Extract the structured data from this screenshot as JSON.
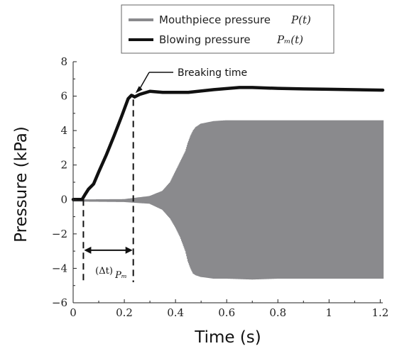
{
  "chart_data": {
    "type": "line",
    "xlabel": "Time (s)",
    "ylabel": "Pressure (kPa)",
    "xlim": [
      0,
      1.21
    ],
    "ylim": [
      -6,
      8
    ],
    "x_ticks": [
      0,
      0.2,
      0.4,
      0.6,
      0.8,
      1,
      1.2
    ],
    "x_tick_labels": [
      "0",
      "0.2",
      "0.4",
      "0.6",
      "0.8",
      "1",
      "1.2"
    ],
    "y_ticks": [
      -6,
      -4,
      -2,
      0,
      2,
      4,
      6,
      8
    ],
    "y_tick_labels": [
      "−6",
      "−4",
      "−2",
      "0",
      "2",
      "4",
      "6",
      "8"
    ],
    "legend_position": "top",
    "series": [
      {
        "name": "Mouthpiece pressure",
        "name_math": "P(t)",
        "color": "#8a8a8d",
        "style": "oscillation-envelope",
        "x": [
          0,
          0.2,
          0.3,
          0.35,
          0.38,
          0.4,
          0.42,
          0.44,
          0.45,
          0.46,
          0.47,
          0.48,
          0.5,
          0.55,
          0.6,
          0.7,
          0.8,
          1.0,
          1.21
        ],
        "upper": [
          0,
          0.02,
          0.2,
          0.5,
          1.0,
          1.6,
          2.2,
          2.8,
          3.3,
          3.7,
          4.0,
          4.2,
          4.4,
          4.55,
          4.6,
          4.6,
          4.6,
          4.6,
          4.6
        ],
        "lower": [
          -0.12,
          -0.15,
          -0.25,
          -0.6,
          -1.1,
          -1.6,
          -2.2,
          -3.0,
          -3.6,
          -4.0,
          -4.3,
          -4.4,
          -4.5,
          -4.6,
          -4.6,
          -4.65,
          -4.6,
          -4.6,
          -4.6
        ]
      },
      {
        "name": "Blowing pressure",
        "name_math": "Pₘ(t)",
        "color": "#111111",
        "style": "thick-line",
        "x": [
          0,
          0.035,
          0.045,
          0.06,
          0.08,
          0.1,
          0.13,
          0.16,
          0.19,
          0.215,
          0.228,
          0.235,
          0.24,
          0.26,
          0.3,
          0.35,
          0.45,
          0.55,
          0.65,
          0.7,
          0.8,
          0.9,
          1.0,
          1.21
        ],
        "values": [
          0,
          0,
          0.25,
          0.6,
          0.9,
          1.6,
          2.6,
          3.7,
          4.85,
          5.85,
          6.05,
          6.0,
          5.95,
          6.1,
          6.28,
          6.22,
          6.22,
          6.38,
          6.5,
          6.5,
          6.45,
          6.42,
          6.4,
          6.35
        ]
      }
    ],
    "annotations": {
      "breaking_time": {
        "label": "Breaking time",
        "x": 0.235,
        "y": 6.05
      },
      "delta_t": {
        "label": "(Δt)",
        "subscript": "Pₘ",
        "x_start": 0.04,
        "x_end": 0.235,
        "y": -2.95
      }
    }
  }
}
